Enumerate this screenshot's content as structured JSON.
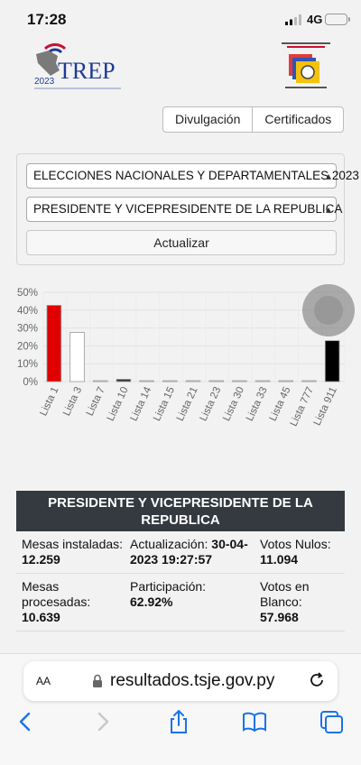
{
  "status": {
    "time": "17:28",
    "network": "4G"
  },
  "tabs": [
    "Divulgación",
    "Certificados"
  ],
  "filters": {
    "election": "ELECCIONES NACIONALES Y DEPARTAMENTALES 2023",
    "position": "PRESIDENTE Y VICEPRESIDENTE DE LA REPUBLICA",
    "update_label": "Actualizar"
  },
  "logo": {
    "year": "2023",
    "name": "TREP"
  },
  "chart_data": {
    "type": "bar",
    "categories": [
      "Lista 1",
      "Lista 3",
      "Lista 7",
      "Lista 10",
      "Lista 14",
      "Lista 15",
      "Lista 21",
      "Lista 23",
      "Lista 30",
      "Lista 33",
      "Lista 45",
      "Lista 777",
      "Lista 911"
    ],
    "values": [
      42.7,
      27.5,
      0.2,
      1.3,
      0.3,
      0.1,
      0.5,
      0.2,
      0.1,
      0.1,
      0.1,
      0.1,
      22.9
    ],
    "colors": [
      "#e00000",
      "#ffffff",
      "#ffffff",
      "#333333",
      "#ffffff",
      "#ffffff",
      "#ffffff",
      "#ffffff",
      "#ffffff",
      "#ffffff",
      "#ffffff",
      "#ffffff",
      "#000000"
    ],
    "ylim": [
      0,
      50
    ],
    "yticks": [
      "0%",
      "10%",
      "20%",
      "30%",
      "40%",
      "50%"
    ],
    "grid": true
  },
  "results": {
    "title": "PRESIDENTE Y VICEPRESIDENTE DE LA REPUBLICA",
    "rows": [
      {
        "c1_label": "Mesas instaladas:",
        "c1_value": "12.259",
        "c2_label": "Actualización:",
        "c2_value": "30-04-2023 19:27:57",
        "c3_label": "Votos Nulos:",
        "c3_value": "11.094"
      },
      {
        "c1_label": "Mesas procesadas:",
        "c1_value": "10.639",
        "c2_label": "Participación:",
        "c2_value": "62.92%",
        "c3_label": "Votos en Blanco:",
        "c3_value": "57.968"
      }
    ]
  },
  "browser": {
    "text_size": "AA",
    "url": "resultados.tsje.gov.py"
  }
}
